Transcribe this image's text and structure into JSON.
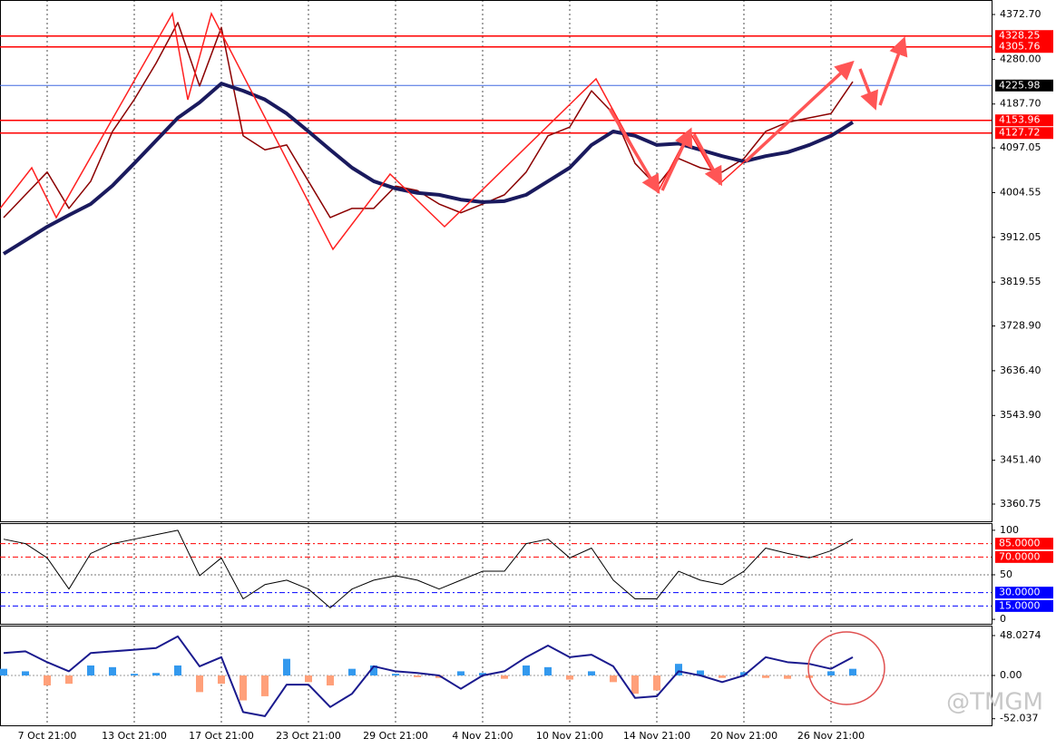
{
  "chart_data": [
    {
      "type": "line",
      "categories": [
        null,
        null,
        "7 Oct 21:00",
        null,
        null,
        null,
        "13 Oct 21:00",
        null,
        null,
        null,
        "17 Oct 21:00",
        null,
        null,
        null,
        "23 Oct 21:00",
        null,
        null,
        null,
        "29 Oct 21:00",
        null,
        null,
        null,
        "4 Nov 21:00",
        null,
        null,
        null,
        "10 Nov 21:00",
        null,
        null,
        null,
        "14 Nov 21:00",
        null,
        null,
        null,
        "20 Nov 21:00",
        null,
        null,
        null,
        "26 Nov 21:00",
        null,
        null,
        null,
        null,
        null,
        null,
        null
      ],
      "series": [
        {
          "color": "#8b0000",
          "width": 1.5,
          "values": [
            3953,
            4000,
            4047,
            3972,
            4028,
            4131,
            4197,
            4272,
            4356,
            4225,
            4346,
            4122,
            4093,
            4103,
            4028,
            3953,
            3972,
            3972,
            4018,
            4009,
            3981,
            3963,
            3981,
            4000,
            4047,
            4122,
            4140,
            4215,
            4168,
            4065,
            4018,
            4075,
            4056,
            4047,
            4075,
            4131,
            4150,
            4159,
            4168,
            4234,
            null,
            null,
            null,
            null,
            null,
            null
          ]
        },
        {
          "color": "#1a1a5e",
          "width": 4,
          "values": [
            3878,
            3906,
            3934,
            3958,
            3981,
            4019,
            4065,
            4112,
            4159,
            4191,
            4230,
            4215,
            4197,
            4168,
            4131,
            4093,
            4056,
            4028,
            4013,
            4004,
            4000,
            3990,
            3985,
            3987,
            4000,
            4028,
            4056,
            4103,
            4131,
            4122,
            4103,
            4106,
            4093,
            4080,
            4069,
            4080,
            4088,
            4103,
            4122,
            4150,
            null,
            null,
            null,
            null,
            null,
            null
          ]
        }
      ],
      "ylim": [
        3325.1,
        4402.7
      ],
      "yticks": [
        {
          "value": 4372.7,
          "label": "4372.70"
        },
        {
          "value": 4280,
          "label": "4280.00"
        },
        {
          "value": 4187.7,
          "label": "4187.70"
        },
        4097.05,
        4004.55,
        3912.05,
        3819.55,
        {
          "value": 3728.9,
          "label": "3728.90"
        },
        {
          "value": 3636.4,
          "label": "3636.40"
        },
        {
          "value": 3543.9,
          "label": "3543.90"
        },
        {
          "value": 3451.4,
          "label": "3451.40"
        },
        3360.75
      ],
      "levels": [
        {
          "value": 4328.25,
          "color": "#ff0000"
        },
        {
          "value": 4305.76,
          "color": "#ff0000"
        },
        {
          "value": 4225.98,
          "color": "#000000",
          "line_color": "#4169e1"
        },
        {
          "value": 4153.96,
          "color": "#ff0000"
        },
        {
          "value": 4127.72,
          "color": "#ff0000"
        }
      ],
      "watermark": "@TMGM"
    },
    {
      "type": "line",
      "series": [
        {
          "color": "#000000",
          "width": 1,
          "values": [
            90,
            85,
            69,
            34,
            74,
            85,
            90,
            95,
            100,
            49,
            69,
            23,
            39,
            44,
            34,
            13,
            34,
            44,
            49,
            44,
            34,
            44,
            54,
            54,
            85,
            90,
            69,
            80,
            44,
            23,
            23,
            54,
            44,
            39,
            54,
            80,
            74,
            69,
            77,
            90,
            null,
            null,
            null,
            null,
            null,
            null
          ]
        }
      ],
      "ylim": [
        -5,
        108
      ],
      "yticks": [
        100,
        50,
        0
      ],
      "levels": [
        {
          "value": 85,
          "label": "85.0000",
          "color": "#ff0000"
        },
        {
          "value": 70,
          "label": "70.0000",
          "color": "#ff0000"
        },
        {
          "value": 30,
          "label": "30.0000",
          "color": "#0000ff"
        },
        {
          "value": 15,
          "label": "15.0000",
          "color": "#0000ff"
        }
      ]
    },
    {
      "type": "macd",
      "series": [
        {
          "style": "bar",
          "color": "#3399ee",
          "negative_color": "#ffa07a",
          "values": [
            8,
            5,
            -12,
            -10,
            12,
            10,
            2,
            3,
            12,
            -20,
            -10,
            -30,
            -25,
            20,
            -8,
            -12,
            8,
            12,
            2,
            -2,
            -3,
            5,
            3,
            -4,
            12,
            10,
            -5,
            5,
            -8,
            -22,
            -18,
            14,
            6,
            -3,
            4,
            -3,
            -4,
            -3,
            5,
            8,
            null,
            null,
            null,
            null,
            null,
            null
          ]
        },
        {
          "style": "line",
          "color": "#1a1a8e",
          "width": 2,
          "values": [
            27,
            29,
            16,
            5,
            27,
            29,
            31,
            33,
            47,
            11,
            22,
            -44,
            -49,
            -11,
            -11,
            -38,
            -22,
            11,
            5,
            3,
            0,
            -16,
            0,
            5,
            22,
            36,
            22,
            25,
            11,
            -27,
            -25,
            5,
            0,
            -8,
            0,
            22,
            16,
            14,
            8,
            22,
            null,
            null,
            null,
            null,
            null,
            null
          ]
        }
      ],
      "ylim": [
        -60,
        60
      ],
      "yticks": [
        48.0274,
        {
          "value": 0,
          "label": "0.00"
        },
        -52.037
      ]
    }
  ]
}
